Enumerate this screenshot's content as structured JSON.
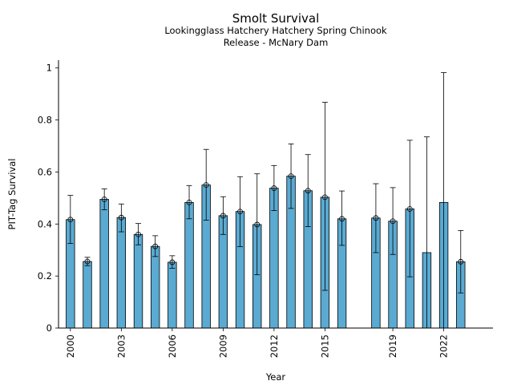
{
  "chart_data": {
    "type": "bar",
    "title": "Smolt Survival",
    "subtitle_lines": [
      "Lookingglass Hatchery Hatchery Spring Chinook",
      "Release - McNary Dam"
    ],
    "xlabel": "Year",
    "ylabel": "PIT-Tag Survival",
    "ylim": [
      0,
      1.03
    ],
    "yticks": [
      0,
      0.2,
      0.4,
      0.6,
      0.8,
      1
    ],
    "ytick_labels": [
      "0",
      "0.2",
      "0.4",
      "0.6",
      "0.8",
      "1"
    ],
    "xlim": [
      1999.3,
      2024.9
    ],
    "xticks": [
      2000,
      2003,
      2006,
      2009,
      2012,
      2015,
      2019,
      2022
    ],
    "xtick_labels": [
      "2000",
      "2003",
      "2006",
      "2009",
      "2012",
      "2015",
      "2019",
      "2022"
    ],
    "bar_color": "#5aaad2",
    "edge_color": "#000000",
    "grid": false,
    "points": [
      {
        "year": 2000,
        "value": 0.417,
        "lower": 0.325,
        "upper": 0.51,
        "marker": true
      },
      {
        "year": 2001,
        "value": 0.256,
        "lower": 0.24,
        "upper": 0.272,
        "marker": true
      },
      {
        "year": 2002,
        "value": 0.495,
        "lower": 0.455,
        "upper": 0.535,
        "marker": true
      },
      {
        "year": 2003,
        "value": 0.425,
        "lower": 0.37,
        "upper": 0.477,
        "marker": true
      },
      {
        "year": 2004,
        "value": 0.36,
        "lower": 0.32,
        "upper": 0.402,
        "marker": true
      },
      {
        "year": 2005,
        "value": 0.314,
        "lower": 0.275,
        "upper": 0.355,
        "marker": true
      },
      {
        "year": 2006,
        "value": 0.253,
        "lower": 0.23,
        "upper": 0.278,
        "marker": true
      },
      {
        "year": 2007,
        "value": 0.483,
        "lower": 0.42,
        "upper": 0.548,
        "marker": true
      },
      {
        "year": 2008,
        "value": 0.55,
        "lower": 0.415,
        "upper": 0.687,
        "marker": true
      },
      {
        "year": 2009,
        "value": 0.432,
        "lower": 0.36,
        "upper": 0.505,
        "marker": true
      },
      {
        "year": 2010,
        "value": 0.448,
        "lower": 0.313,
        "upper": 0.582,
        "marker": true
      },
      {
        "year": 2011,
        "value": 0.398,
        "lower": 0.205,
        "upper": 0.593,
        "marker": true
      },
      {
        "year": 2012,
        "value": 0.538,
        "lower": 0.452,
        "upper": 0.625,
        "marker": true
      },
      {
        "year": 2013,
        "value": 0.584,
        "lower": 0.46,
        "upper": 0.708,
        "marker": true
      },
      {
        "year": 2014,
        "value": 0.528,
        "lower": 0.39,
        "upper": 0.667,
        "marker": true
      },
      {
        "year": 2015,
        "value": 0.503,
        "lower": 0.145,
        "upper": 0.868,
        "marker": true
      },
      {
        "year": 2016,
        "value": 0.42,
        "lower": 0.318,
        "upper": 0.527,
        "marker": true
      },
      {
        "year": 2018,
        "value": 0.423,
        "lower": 0.29,
        "upper": 0.555,
        "marker": true
      },
      {
        "year": 2019,
        "value": 0.411,
        "lower": 0.283,
        "upper": 0.54,
        "marker": true
      },
      {
        "year": 2020,
        "value": 0.458,
        "lower": 0.197,
        "upper": 0.722,
        "marker": true
      },
      {
        "year": 2021,
        "value": 0.29,
        "lower": 0.0,
        "upper": 0.735,
        "marker": false
      },
      {
        "year": 2022,
        "value": 0.483,
        "lower": 0.0,
        "upper": 0.982,
        "marker": false
      },
      {
        "year": 2023,
        "value": 0.255,
        "lower": 0.135,
        "upper": 0.375,
        "marker": true
      }
    ]
  }
}
